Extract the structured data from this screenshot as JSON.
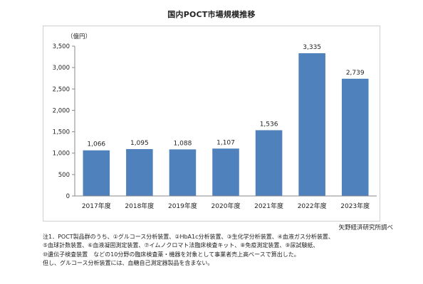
{
  "chart_data": {
    "type": "bar",
    "title": "国内POCT市場規模推移",
    "ylabel": "（億円）",
    "xlabel": "",
    "categories": [
      "2017年度",
      "2018年度",
      "2019年度",
      "2020年度",
      "2021年度",
      "2022年度",
      "2023年度"
    ],
    "values": [
      1066,
      1095,
      1088,
      1107,
      1536,
      3335,
      2739
    ],
    "value_labels": [
      "1,066",
      "1,095",
      "1,088",
      "1,107",
      "1,536",
      "3,335",
      "2,739"
    ],
    "ylim": [
      0,
      3500
    ],
    "yticks": [
      0,
      500,
      1000,
      1500,
      2000,
      2500,
      3000,
      3500
    ],
    "ytick_labels": [
      "0",
      "500",
      "1,000",
      "1,500",
      "2,000",
      "2,500",
      "3,000",
      "3,500"
    ],
    "grid": false,
    "bar_color": "#4f81bd"
  },
  "source": "矢野経済研究所調べ",
  "notes": [
    "注1．POCT製品群のうち、①グルコース分析装置、②HbA1c分析装置、③生化学分析装置、④血液ガス分析装置、",
    "⑤血球計数装置、⑥血液凝固測定装置、⑦イムノクロマト法臨床検査キット、⑧免疫測定装置、⑨尿試験紙、",
    "⑩遺伝子検査装置　などの10分野の臨床検査薬・機器を対象として事業者売上高ベースで算出した。",
    "但し、グルコース分析装置には、血糖自己測定器製品を含まない。"
  ]
}
